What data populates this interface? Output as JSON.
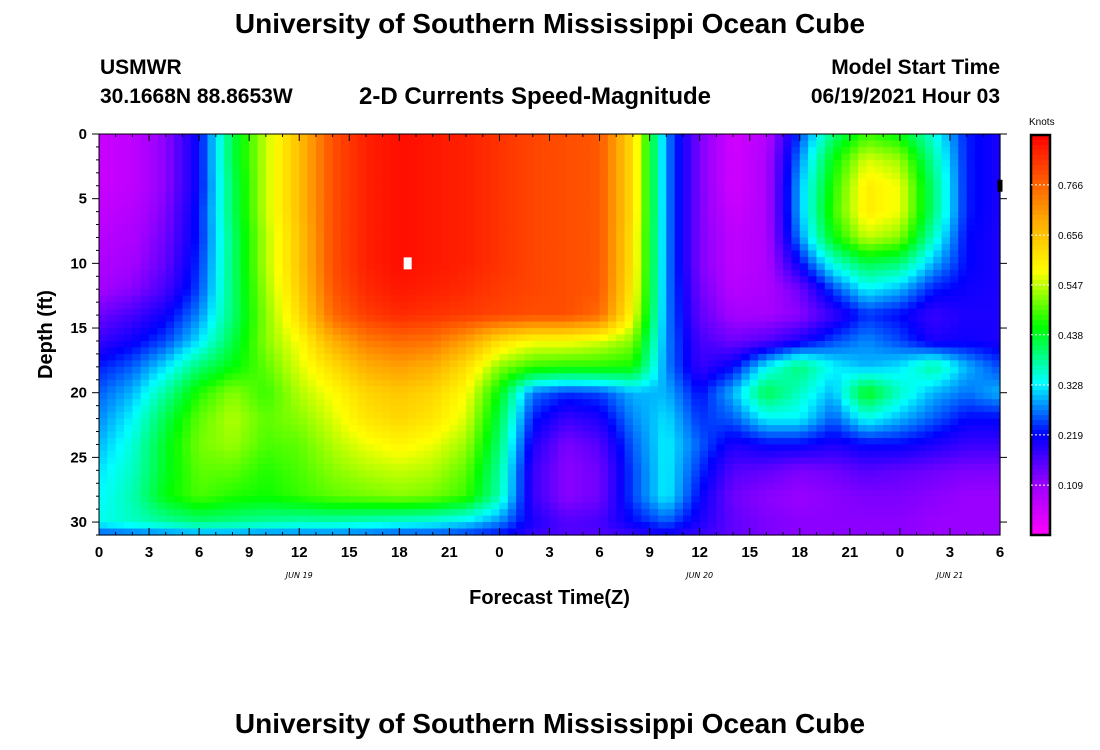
{
  "header": {
    "title": "University of Southern Mississippi Ocean Cube",
    "station": "USMWR",
    "coords": "30.1668N  88.8653W",
    "plot_title": "2-D Currents Speed-Magnitude",
    "model_start_label": "Model Start Time",
    "model_start_value": "06/19/2021 Hour 03"
  },
  "footer": {
    "title": "University of Southern Mississippi Ocean Cube"
  },
  "chart_data": {
    "type": "heatmap",
    "title": "2-D Currents Speed-Magnitude",
    "xlabel": "Forecast Time(Z)",
    "ylabel": "Depth (ft)",
    "x_range_hours": [
      0,
      54
    ],
    "ylim": [
      0,
      31
    ],
    "y_inverted": true,
    "x_ticks": [
      "0",
      "3",
      "6",
      "9",
      "12",
      "15",
      "18",
      "21",
      "0",
      "3",
      "6",
      "9",
      "12",
      "15",
      "18",
      "21",
      "0",
      "3",
      "6"
    ],
    "y_ticks": [
      0,
      5,
      10,
      15,
      20,
      25,
      30
    ],
    "date_labels": [
      {
        "text": "JUN 19",
        "hour": 12
      },
      {
        "text": "JUN 20",
        "hour": 36
      },
      {
        "text": "JUN 21",
        "hour": 51
      }
    ],
    "colorbar": {
      "unit": "Knots",
      "range": [
        0.0,
        0.875
      ],
      "labels": [
        "0.766",
        "0.656",
        "0.547",
        "0.438",
        "0.328",
        "0.219",
        "0.109"
      ],
      "label_values": [
        0.766,
        0.656,
        0.547,
        0.438,
        0.328,
        0.219,
        0.109
      ]
    },
    "depths": [
      0,
      2,
      4,
      6,
      8,
      10,
      12,
      14,
      16,
      18,
      20,
      22,
      24,
      26,
      28,
      30,
      31
    ],
    "times": [
      0,
      2,
      4,
      6,
      8,
      10,
      12,
      14,
      16,
      18,
      20,
      22,
      24,
      26,
      28,
      30,
      32,
      34,
      36,
      38,
      40,
      42,
      44,
      46,
      48,
      50,
      52,
      54
    ],
    "speed_knots": [
      [
        0.06,
        0.07,
        0.12,
        0.22,
        0.42,
        0.55,
        0.66,
        0.79,
        0.84,
        0.86,
        0.85,
        0.84,
        0.82,
        0.8,
        0.79,
        0.78,
        0.62,
        0.28,
        0.13,
        0.05,
        0.08,
        0.25,
        0.4,
        0.48,
        0.45,
        0.35,
        0.23,
        0.2
      ],
      [
        0.06,
        0.07,
        0.12,
        0.22,
        0.42,
        0.55,
        0.66,
        0.79,
        0.84,
        0.86,
        0.85,
        0.84,
        0.82,
        0.8,
        0.79,
        0.78,
        0.62,
        0.28,
        0.13,
        0.05,
        0.09,
        0.28,
        0.45,
        0.56,
        0.53,
        0.38,
        0.23,
        0.2
      ],
      [
        0.06,
        0.07,
        0.12,
        0.22,
        0.41,
        0.55,
        0.66,
        0.79,
        0.84,
        0.86,
        0.85,
        0.84,
        0.82,
        0.8,
        0.79,
        0.78,
        0.62,
        0.28,
        0.13,
        0.05,
        0.09,
        0.3,
        0.47,
        0.6,
        0.57,
        0.4,
        0.23,
        0.2
      ],
      [
        0.07,
        0.08,
        0.13,
        0.23,
        0.41,
        0.55,
        0.66,
        0.79,
        0.84,
        0.86,
        0.85,
        0.84,
        0.82,
        0.8,
        0.79,
        0.78,
        0.62,
        0.28,
        0.13,
        0.06,
        0.09,
        0.3,
        0.48,
        0.6,
        0.57,
        0.4,
        0.23,
        0.2
      ],
      [
        0.08,
        0.09,
        0.14,
        0.23,
        0.4,
        0.54,
        0.65,
        0.79,
        0.84,
        0.86,
        0.85,
        0.84,
        0.82,
        0.8,
        0.79,
        0.78,
        0.61,
        0.28,
        0.13,
        0.07,
        0.09,
        0.28,
        0.45,
        0.55,
        0.52,
        0.36,
        0.22,
        0.2
      ],
      [
        0.09,
        0.1,
        0.15,
        0.24,
        0.4,
        0.54,
        0.65,
        0.79,
        0.84,
        0.86,
        0.85,
        0.84,
        0.82,
        0.8,
        0.79,
        0.78,
        0.61,
        0.28,
        0.13,
        0.07,
        0.09,
        0.22,
        0.35,
        0.42,
        0.4,
        0.3,
        0.22,
        0.2
      ],
      [
        0.1,
        0.12,
        0.17,
        0.25,
        0.4,
        0.53,
        0.64,
        0.78,
        0.83,
        0.85,
        0.84,
        0.83,
        0.81,
        0.8,
        0.79,
        0.78,
        0.6,
        0.28,
        0.14,
        0.08,
        0.09,
        0.14,
        0.25,
        0.33,
        0.3,
        0.23,
        0.21,
        0.2
      ],
      [
        0.14,
        0.17,
        0.21,
        0.28,
        0.4,
        0.52,
        0.62,
        0.76,
        0.81,
        0.83,
        0.82,
        0.81,
        0.8,
        0.79,
        0.79,
        0.76,
        0.58,
        0.28,
        0.15,
        0.1,
        0.1,
        0.12,
        0.18,
        0.24,
        0.22,
        0.18,
        0.2,
        0.2
      ],
      [
        0.18,
        0.21,
        0.25,
        0.32,
        0.42,
        0.52,
        0.58,
        0.68,
        0.74,
        0.76,
        0.75,
        0.7,
        0.62,
        0.58,
        0.58,
        0.56,
        0.52,
        0.28,
        0.17,
        0.14,
        0.16,
        0.2,
        0.25,
        0.28,
        0.25,
        0.2,
        0.21,
        0.2
      ],
      [
        0.23,
        0.26,
        0.32,
        0.4,
        0.45,
        0.5,
        0.56,
        0.62,
        0.68,
        0.7,
        0.68,
        0.62,
        0.52,
        0.48,
        0.47,
        0.47,
        0.46,
        0.28,
        0.18,
        0.22,
        0.33,
        0.4,
        0.33,
        0.3,
        0.32,
        0.38,
        0.3,
        0.25
      ],
      [
        0.26,
        0.3,
        0.38,
        0.47,
        0.52,
        0.48,
        0.54,
        0.58,
        0.63,
        0.65,
        0.63,
        0.58,
        0.45,
        0.27,
        0.24,
        0.25,
        0.3,
        0.3,
        0.22,
        0.3,
        0.42,
        0.36,
        0.3,
        0.45,
        0.36,
        0.3,
        0.27,
        0.3
      ],
      [
        0.28,
        0.33,
        0.42,
        0.5,
        0.54,
        0.5,
        0.52,
        0.56,
        0.61,
        0.63,
        0.61,
        0.56,
        0.42,
        0.23,
        0.18,
        0.2,
        0.28,
        0.32,
        0.24,
        0.26,
        0.33,
        0.33,
        0.26,
        0.34,
        0.3,
        0.26,
        0.22,
        0.22
      ],
      [
        0.3,
        0.35,
        0.44,
        0.51,
        0.53,
        0.49,
        0.5,
        0.54,
        0.57,
        0.59,
        0.57,
        0.53,
        0.4,
        0.2,
        0.13,
        0.16,
        0.26,
        0.33,
        0.26,
        0.2,
        0.22,
        0.22,
        0.2,
        0.22,
        0.22,
        0.2,
        0.18,
        0.18
      ],
      [
        0.32,
        0.36,
        0.44,
        0.5,
        0.5,
        0.47,
        0.49,
        0.52,
        0.54,
        0.55,
        0.54,
        0.5,
        0.38,
        0.18,
        0.12,
        0.14,
        0.25,
        0.33,
        0.24,
        0.16,
        0.15,
        0.13,
        0.14,
        0.16,
        0.15,
        0.14,
        0.13,
        0.13
      ],
      [
        0.33,
        0.37,
        0.45,
        0.49,
        0.47,
        0.46,
        0.48,
        0.5,
        0.51,
        0.52,
        0.51,
        0.48,
        0.37,
        0.18,
        0.12,
        0.14,
        0.25,
        0.33,
        0.22,
        0.14,
        0.12,
        0.11,
        0.12,
        0.13,
        0.13,
        0.12,
        0.11,
        0.11
      ],
      [
        0.34,
        0.36,
        0.38,
        0.4,
        0.39,
        0.38,
        0.37,
        0.37,
        0.36,
        0.35,
        0.34,
        0.32,
        0.28,
        0.2,
        0.16,
        0.17,
        0.22,
        0.26,
        0.2,
        0.15,
        0.13,
        0.12,
        0.12,
        0.12,
        0.12,
        0.11,
        0.11,
        0.11
      ],
      [
        0.25,
        0.26,
        0.27,
        0.28,
        0.28,
        0.27,
        0.27,
        0.27,
        0.26,
        0.25,
        0.25,
        0.24,
        0.22,
        0.18,
        0.16,
        0.16,
        0.18,
        0.2,
        0.18,
        0.15,
        0.13,
        0.12,
        0.12,
        0.12,
        0.12,
        0.11,
        0.11,
        0.11
      ]
    ],
    "markers": [
      {
        "name": "white-marker",
        "time": 18.5,
        "depth": 10,
        "color": "#ffffff"
      },
      {
        "name": "black-marker",
        "time": 54,
        "depth": 4,
        "color": "#000000"
      }
    ]
  }
}
